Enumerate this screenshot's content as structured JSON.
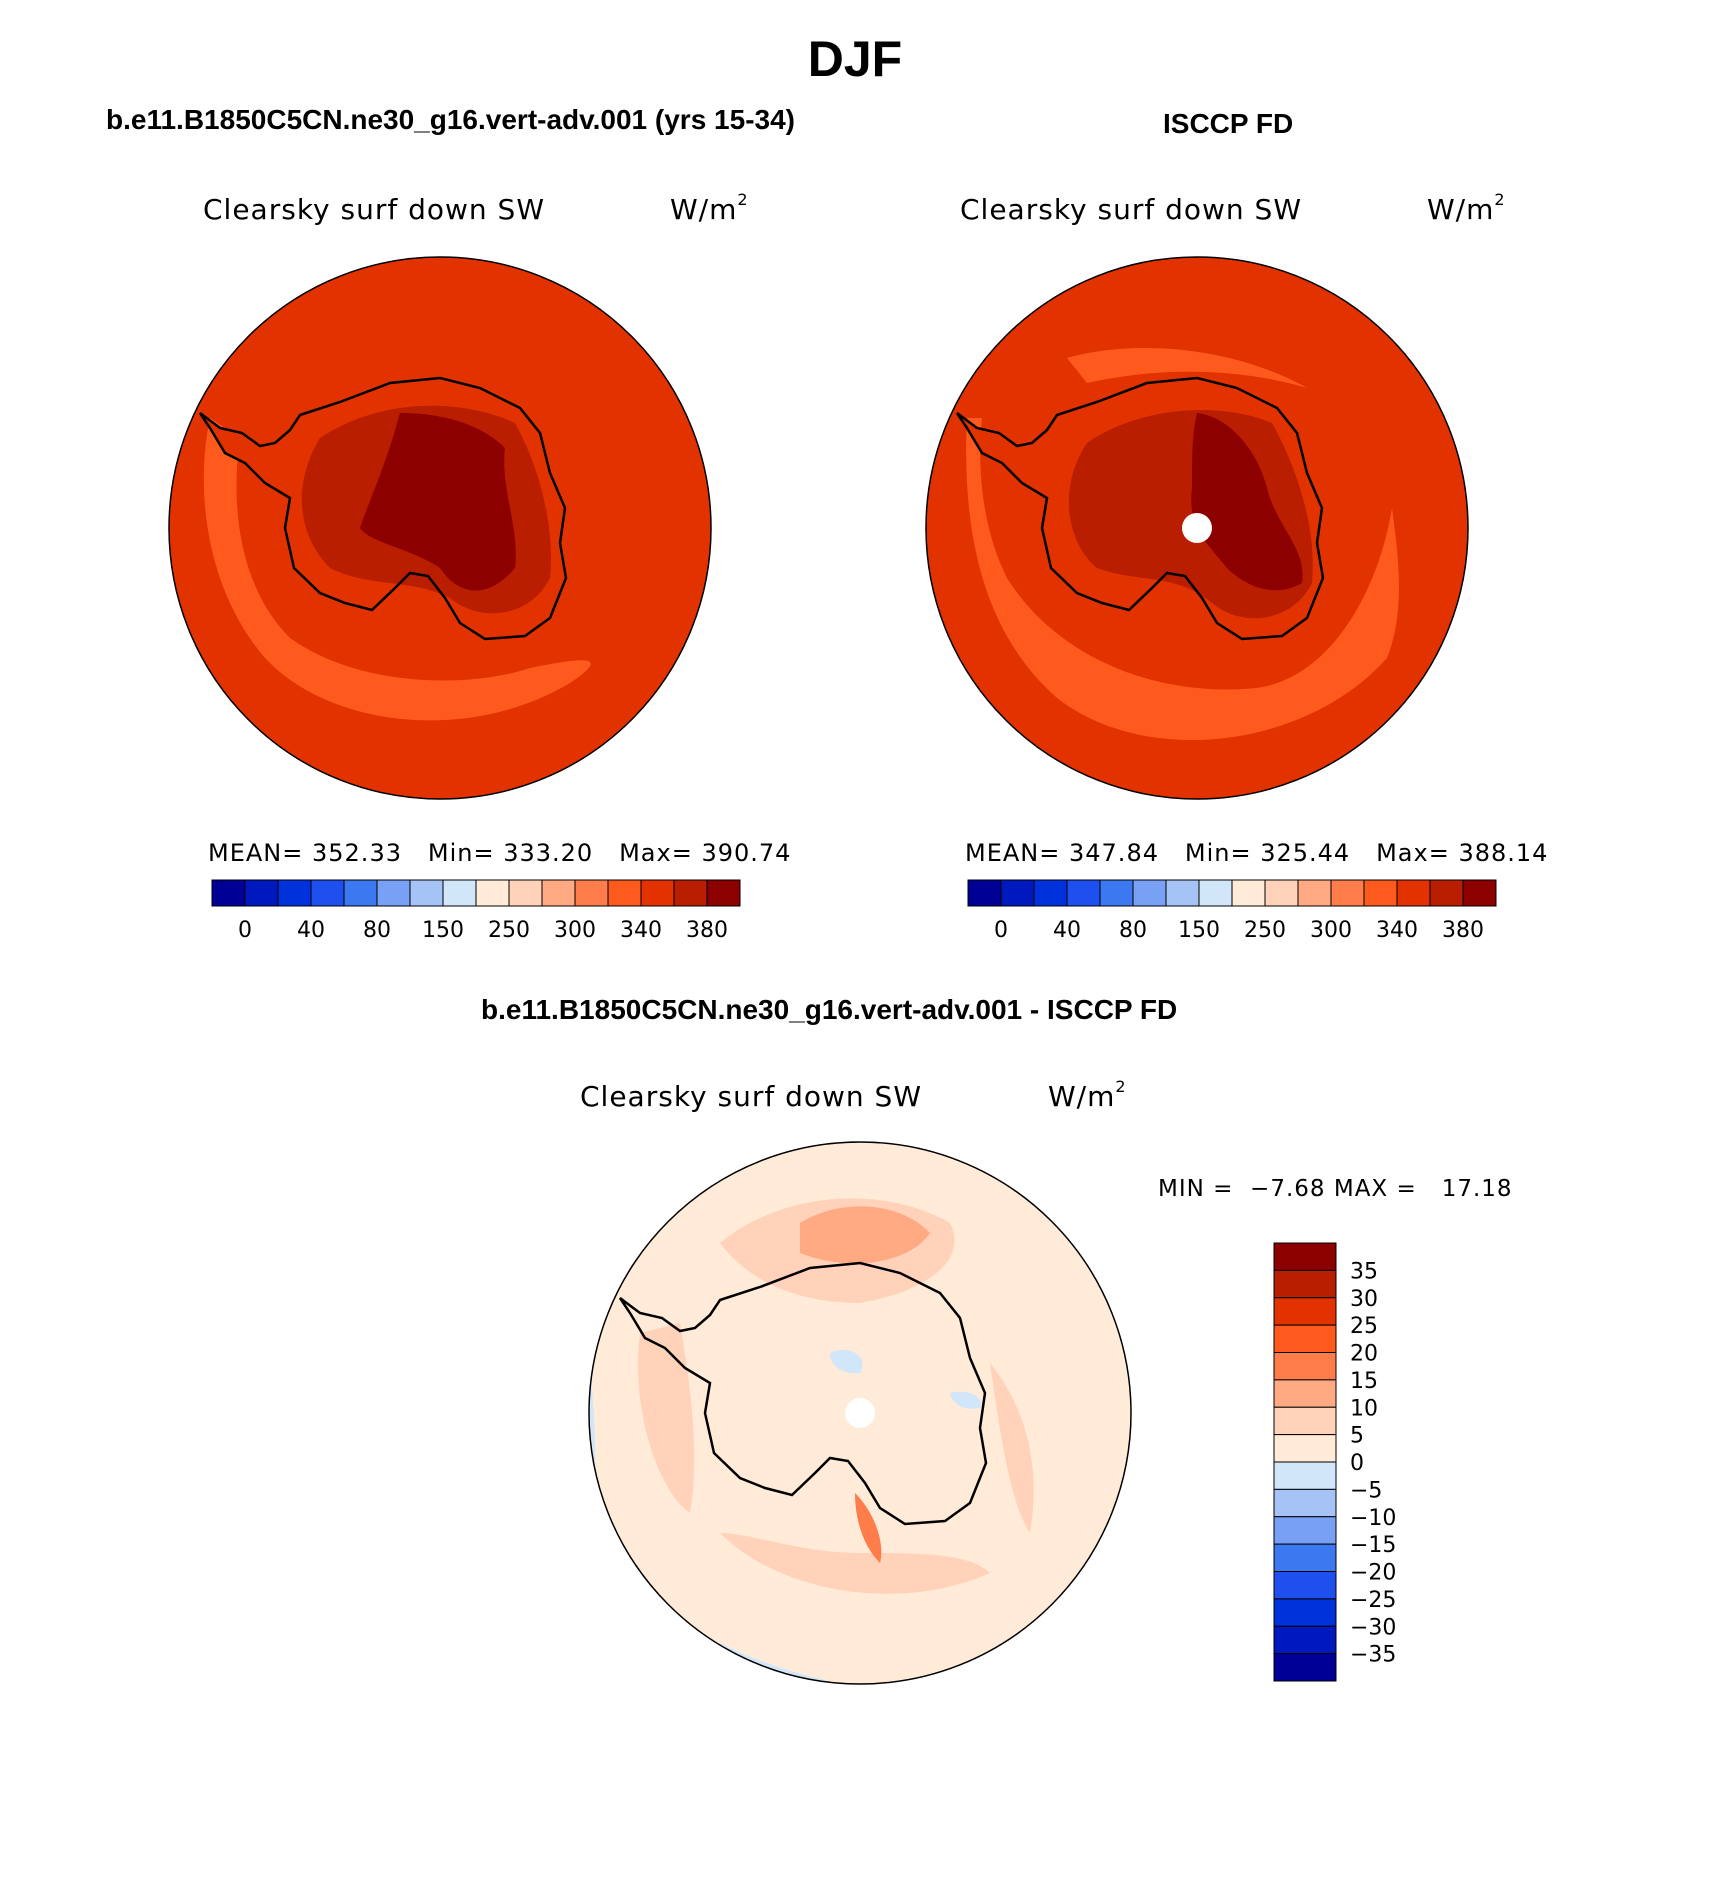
{
  "title": "DJF",
  "panels": {
    "model": {
      "header": "b.e11.B1850C5CN.ne30_g16.vert-adv.001 (yrs 15-34)",
      "variable": "Clearsky surf down SW",
      "units_base": "W/m",
      "units_exp": "2",
      "mean_label": "MEAN=",
      "mean": "352.33",
      "min_label": "Min=",
      "min": "333.20",
      "max_label": "Max=",
      "max": "390.74"
    },
    "obs": {
      "header": "ISCCP FD",
      "variable": "Clearsky surf down SW",
      "units_base": "W/m",
      "units_exp": "2",
      "mean_label": "MEAN=",
      "mean": "347.84",
      "min_label": "Min=",
      "min": "325.44",
      "max_label": "Max=",
      "max": "388.14"
    },
    "diff": {
      "header": "b.e11.B1850C5CN.ne30_g16.vert-adv.001 - ISCCP FD",
      "variable": "Clearsky surf down SW",
      "units_base": "W/m",
      "units_exp": "2",
      "min_label": "MIN =",
      "min": "−7.68",
      "max_label": "MAX =",
      "max": "17.18"
    }
  },
  "colorbar_abs": {
    "colors": [
      "#000096",
      "#0019be",
      "#0032dc",
      "#1e50f0",
      "#3c78f0",
      "#78a0f5",
      "#a5c3f5",
      "#d2e6fa",
      "#ffebd7",
      "#ffd2b9",
      "#ffaa82",
      "#ff7d4b",
      "#ff5a1e",
      "#e13200",
      "#b91e00",
      "#8c0000"
    ],
    "tick_labels": [
      "0",
      "40",
      "80",
      "150",
      "250",
      "300",
      "340",
      "380"
    ]
  },
  "colorbar_diff": {
    "colors_top_down": [
      "#8c0000",
      "#b91e00",
      "#e13200",
      "#ff5a1e",
      "#ff7d4b",
      "#ffaa82",
      "#ffd2b9",
      "#ffebd7",
      "#d2e6fa",
      "#a5c3f5",
      "#78a0f5",
      "#3c78f0",
      "#1e50f0",
      "#0032dc",
      "#0019be",
      "#000096"
    ],
    "tick_labels": [
      "35",
      "30",
      "25",
      "20",
      "15",
      "10",
      "5",
      "0",
      "−5",
      "−10",
      "−15",
      "−20",
      "−25",
      "−30",
      "−35"
    ]
  }
}
